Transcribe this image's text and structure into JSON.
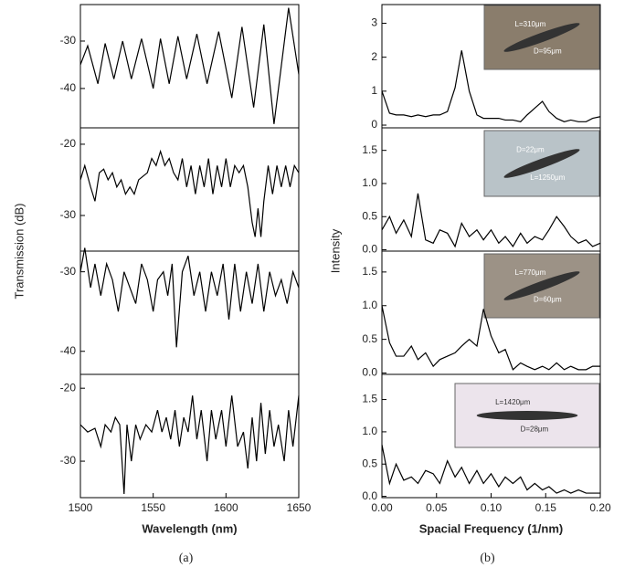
{
  "chart_data": [
    {
      "type": "line",
      "color": "#000000",
      "ylabel": "Transmission (dB)",
      "x": [
        1500,
        1505,
        1512,
        1517,
        1523,
        1529,
        1535,
        1542,
        1550,
        1555,
        1561,
        1567,
        1573,
        1580,
        1587,
        1595,
        1604,
        1611,
        1619,
        1626,
        1633,
        1643,
        1650
      ],
      "values": [
        -35,
        -31,
        -39,
        -30.5,
        -38,
        -30,
        -38,
        -29.5,
        -40,
        -29.5,
        -39,
        -29,
        -38,
        -28.5,
        -39,
        -28,
        -42,
        -27,
        -44,
        -26.5,
        -47.5,
        -23,
        -37
      ],
      "xlim": [
        1500,
        1650
      ],
      "ylim": [
        -48.3,
        -22.3
      ],
      "yticks": [
        -30,
        -40
      ]
    },
    {
      "type": "line",
      "color": "#000000",
      "x": [
        1500,
        1503,
        1507,
        1510,
        1513,
        1516,
        1519,
        1522,
        1525,
        1528,
        1531,
        1534,
        1537,
        1540,
        1543,
        1546,
        1549,
        1552,
        1555,
        1558,
        1561,
        1564,
        1567,
        1570,
        1573,
        1576,
        1579,
        1582,
        1585,
        1588,
        1591,
        1594,
        1597,
        1600,
        1603,
        1606,
        1609,
        1612,
        1615,
        1618,
        1620,
        1622,
        1624,
        1626,
        1629,
        1632,
        1635,
        1638,
        1641,
        1644,
        1647,
        1650
      ],
      "values": [
        -25,
        -23,
        -26,
        -28,
        -24,
        -23.5,
        -25,
        -24,
        -26,
        -25,
        -27,
        -26,
        -27,
        -25,
        -24.5,
        -24,
        -22,
        -23,
        -21,
        -23,
        -22,
        -24,
        -25,
        -22,
        -26,
        -23,
        -27,
        -23,
        -26,
        -22,
        -27,
        -23,
        -26,
        -22,
        -26,
        -23,
        -24,
        -23,
        -26,
        -31,
        -33,
        -29,
        -33,
        -28,
        -23,
        -27,
        -23,
        -26,
        -23,
        -26,
        -23,
        -24
      ],
      "xlim": [
        1500,
        1650
      ],
      "ylim": [
        -35,
        -17.7
      ],
      "yticks": [
        -20,
        -30
      ]
    },
    {
      "type": "line",
      "color": "#000000",
      "x": [
        1500,
        1503,
        1507,
        1510,
        1514,
        1518,
        1522,
        1526,
        1530,
        1534,
        1538,
        1542,
        1546,
        1550,
        1553,
        1557,
        1560,
        1563,
        1566,
        1570,
        1574,
        1578,
        1582,
        1586,
        1590,
        1594,
        1598,
        1602,
        1606,
        1610,
        1614,
        1618,
        1622,
        1626,
        1630,
        1634,
        1638,
        1642,
        1646,
        1650
      ],
      "values": [
        -30,
        -27,
        -32,
        -29,
        -33,
        -29,
        -31,
        -35,
        -30,
        -32,
        -34,
        -29,
        -31,
        -35,
        -31,
        -30,
        -33,
        -29,
        -39.5,
        -30,
        -28,
        -33,
        -30,
        -35,
        -30,
        -33,
        -29,
        -36,
        -29,
        -35,
        -30,
        -34,
        -29,
        -35,
        -30,
        -33,
        -31,
        -34,
        -30,
        -32
      ],
      "xlim": [
        1500,
        1650
      ],
      "ylim": [
        -42.9,
        -27.4
      ],
      "yticks": [
        -30,
        -40
      ]
    },
    {
      "type": "line",
      "color": "#000000",
      "xlabel": "Wavelength (nm)",
      "panel_label": "(a)",
      "x": [
        1500,
        1505,
        1510,
        1514,
        1517,
        1521,
        1524,
        1527,
        1530,
        1532,
        1535,
        1538,
        1541,
        1545,
        1549,
        1553,
        1556,
        1559,
        1562,
        1565,
        1568,
        1571,
        1574,
        1577,
        1580,
        1583,
        1587,
        1590,
        1593,
        1597,
        1600,
        1604,
        1608,
        1612,
        1615,
        1618,
        1621,
        1624,
        1627,
        1630,
        1633,
        1636,
        1640,
        1643,
        1646,
        1650
      ],
      "values": [
        -25,
        -26,
        -25.5,
        -28,
        -25,
        -26,
        -24,
        -25,
        -34.5,
        -25,
        -30,
        -25,
        -27,
        -25,
        -26,
        -23,
        -26,
        -24,
        -27,
        -23,
        -28,
        -24,
        -26,
        -21,
        -27,
        -23,
        -30,
        -23,
        -27,
        -23,
        -28,
        -21,
        -28,
        -26,
        -31,
        -24,
        -30,
        -22,
        -29,
        -23,
        -28,
        -25,
        -30,
        -23,
        -28,
        -21
      ],
      "xlim": [
        1500,
        1650
      ],
      "ylim": [
        -35,
        -18.1
      ],
      "yticks": [
        -20,
        -30
      ],
      "xticks": [
        1500,
        1550,
        1600,
        1650
      ]
    },
    {
      "type": "line",
      "color": "#000000",
      "ylabel": "Intensity",
      "annotations": [
        "L=310μm",
        "D=95μm"
      ],
      "x": [
        0,
        0.007,
        0.013,
        0.02,
        0.027,
        0.033,
        0.04,
        0.047,
        0.053,
        0.06,
        0.067,
        0.073,
        0.08,
        0.087,
        0.093,
        0.1,
        0.107,
        0.113,
        0.12,
        0.127,
        0.133,
        0.14,
        0.147,
        0.153,
        0.16,
        0.167,
        0.173,
        0.18,
        0.187,
        0.193,
        0.2
      ],
      "values": [
        1.0,
        0.35,
        0.3,
        0.3,
        0.25,
        0.3,
        0.25,
        0.3,
        0.3,
        0.4,
        1.1,
        2.2,
        1.0,
        0.3,
        0.2,
        0.2,
        0.2,
        0.15,
        0.15,
        0.1,
        0.3,
        0.5,
        0.7,
        0.4,
        0.2,
        0.1,
        0.15,
        0.1,
        0.1,
        0.2,
        0.25
      ],
      "xlim": [
        0,
        0.2
      ],
      "ylim": [
        -0.08,
        3.55
      ],
      "yticks": [
        0,
        1,
        2,
        3
      ]
    },
    {
      "type": "line",
      "color": "#000000",
      "annotations": [
        "D=22μm",
        "L=1250μm"
      ],
      "x": [
        0,
        0.007,
        0.013,
        0.02,
        0.027,
        0.033,
        0.04,
        0.047,
        0.053,
        0.06,
        0.067,
        0.073,
        0.08,
        0.087,
        0.093,
        0.1,
        0.107,
        0.113,
        0.12,
        0.127,
        0.133,
        0.14,
        0.147,
        0.153,
        0.16,
        0.167,
        0.173,
        0.18,
        0.187,
        0.193,
        0.2
      ],
      "values": [
        0.3,
        0.5,
        0.25,
        0.45,
        0.2,
        0.85,
        0.15,
        0.1,
        0.3,
        0.25,
        0.05,
        0.4,
        0.2,
        0.3,
        0.15,
        0.3,
        0.1,
        0.2,
        0.05,
        0.25,
        0.1,
        0.2,
        0.15,
        0.3,
        0.5,
        0.35,
        0.2,
        0.1,
        0.15,
        0.05,
        0.1
      ],
      "xlim": [
        0,
        0.2
      ],
      "ylim": [
        -0.02,
        1.84
      ],
      "yticks": [
        {
          "value": 0,
          "label": "0.0"
        },
        {
          "value": 0.5,
          "label": "0.5"
        },
        {
          "value": 1,
          "label": "1.0"
        },
        {
          "value": 1.5,
          "label": "1.5"
        }
      ]
    },
    {
      "type": "line",
      "color": "#000000",
      "annotations": [
        "L=770μm",
        "D=60μm"
      ],
      "x": [
        0,
        0.007,
        0.013,
        0.02,
        0.027,
        0.033,
        0.04,
        0.047,
        0.053,
        0.06,
        0.067,
        0.073,
        0.08,
        0.087,
        0.093,
        0.1,
        0.107,
        0.113,
        0.12,
        0.127,
        0.133,
        0.14,
        0.147,
        0.153,
        0.16,
        0.167,
        0.173,
        0.18,
        0.187,
        0.193,
        0.2
      ],
      "values": [
        1.0,
        0.45,
        0.25,
        0.25,
        0.4,
        0.2,
        0.3,
        0.1,
        0.2,
        0.25,
        0.3,
        0.4,
        0.5,
        0.4,
        0.95,
        0.55,
        0.3,
        0.35,
        0.05,
        0.15,
        0.1,
        0.05,
        0.1,
        0.05,
        0.15,
        0.05,
        0.1,
        0.05,
        0.05,
        0.1,
        0.1
      ],
      "xlim": [
        0,
        0.2
      ],
      "ylim": [
        -0.02,
        1.81
      ],
      "yticks": [
        {
          "value": 0,
          "label": "0.0"
        },
        {
          "value": 0.5,
          "label": "0.5"
        },
        {
          "value": 1,
          "label": "1.0"
        },
        {
          "value": 1.5,
          "label": "1.5"
        }
      ]
    },
    {
      "type": "line",
      "color": "#000000",
      "xlabel": "Spacial Frequency (1/nm)",
      "panel_label": "(b)",
      "annotations": [
        "L=1420μm",
        "D=28μm"
      ],
      "x": [
        0,
        0.007,
        0.013,
        0.02,
        0.027,
        0.033,
        0.04,
        0.047,
        0.053,
        0.06,
        0.067,
        0.073,
        0.08,
        0.087,
        0.093,
        0.1,
        0.107,
        0.113,
        0.12,
        0.127,
        0.133,
        0.14,
        0.147,
        0.153,
        0.16,
        0.167,
        0.173,
        0.18,
        0.187,
        0.193,
        0.2
      ],
      "values": [
        0.8,
        0.2,
        0.5,
        0.25,
        0.3,
        0.2,
        0.4,
        0.35,
        0.2,
        0.55,
        0.3,
        0.45,
        0.2,
        0.4,
        0.2,
        0.35,
        0.15,
        0.3,
        0.2,
        0.3,
        0.1,
        0.2,
        0.1,
        0.15,
        0.05,
        0.1,
        0.05,
        0.1,
        0.05,
        0.05,
        0.05
      ],
      "xlim": [
        0,
        0.2
      ],
      "ylim": [
        -0.02,
        1.89
      ],
      "yticks": [
        {
          "value": 0,
          "label": "0.0"
        },
        {
          "value": 0.5,
          "label": "0.5"
        },
        {
          "value": 1,
          "label": "1.0"
        },
        {
          "value": 1.5,
          "label": "1.5"
        }
      ],
      "xticks": [
        {
          "value": 0,
          "label": "0.00"
        },
        {
          "value": 0.05,
          "label": "0.05"
        },
        {
          "value": 0.1,
          "label": "0.10"
        },
        {
          "value": 0.15,
          "label": "0.15"
        },
        {
          "value": 0.2,
          "label": "0.20"
        }
      ]
    }
  ]
}
